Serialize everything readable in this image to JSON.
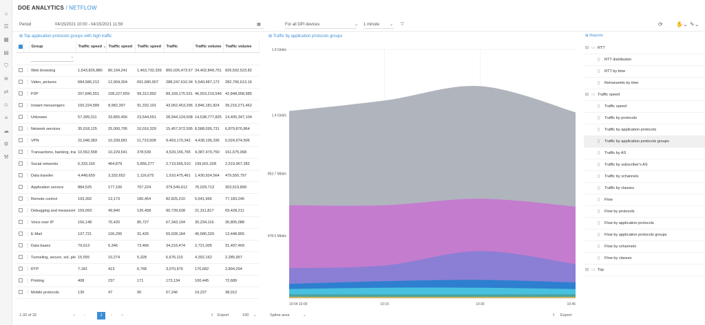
{
  "app": {
    "title": "DOE ANALYTICS",
    "separator": " / ",
    "section": "NETFLOW"
  },
  "filters": {
    "period_label": "Period",
    "period_value": "04/15/2021 10:00 - 04/15/2021 11:59",
    "device_value": "For all DPI devices",
    "interval_value": "1 minute"
  },
  "table": {
    "title": "Top application protocols groups with high traffic",
    "columns": [
      "Group",
      "Traffic speed",
      "Traffic speed",
      "Traffic speed",
      "Traffic",
      "Traffic volume",
      "Traffic volume"
    ],
    "rows": [
      [
        "Web browsing",
        "1,543,826,880",
        "80,194,241",
        "1,463,732,339",
        "850,026,473.57",
        "34,402,849,751",
        "826,592,523.82"
      ],
      [
        "Video, pictures",
        "684,586,212",
        "12,904,304",
        "691,680,907",
        "288,247,610.34",
        "5,540,487,172",
        "282,706,613.16"
      ],
      [
        "P2P",
        "207,840,551",
        "108,227,659",
        "99,312,892",
        "89,169,175.531",
        "46,503,219,546",
        "42,848,958,985"
      ],
      [
        "Instant messengers",
        "100,224,589",
        "8,982,397",
        "91,332,191",
        "43,062,453,296",
        "3,846,181,824",
        "39,216,271,462"
      ],
      [
        "Unknown",
        "57,399,311",
        "33,855,456",
        "23,544,551",
        "28,944,124,508",
        "14,538,777,825",
        "14,405,347,104"
      ],
      [
        "Network services",
        "35,018,125",
        "25,000,795",
        "10,016,329",
        "15,457,972,595",
        "8,588,095,731",
        "6,879,876,864"
      ],
      [
        "VPN",
        "22,048,383",
        "10,339,681",
        "11,723,508",
        "9,463,170,342",
        "4,438,195,336",
        "5,024,974,506"
      ],
      [
        "Transactions, banking, trac",
        "10,552,558",
        "10,229,541",
        "378,539",
        "4,529,156,765",
        "4,387,479,750",
        "161,675,068"
      ],
      [
        "Social networks",
        "6,333,160",
        "464,879",
        "5,856,277",
        "2,719,566,510",
        "199,601,028",
        "2,519,967,282"
      ],
      [
        "Data transfer",
        "4,448,659",
        "3,332,652",
        "1,116,675",
        "1,910,475,461",
        "1,430,924,564",
        "479,550,797"
      ],
      [
        "Application servers",
        "884,525",
        "177,106",
        "707,224",
        "379,549,612",
        "76,029,713",
        "303,519,899"
      ],
      [
        "Remote control",
        "193,392",
        "13,173",
        "180,454",
        "82,825,210",
        "5,641,965",
        "77,183,245"
      ],
      [
        "Debugging and measurem",
        "159,093",
        "49,840",
        "135,458",
        "90,739,628",
        "21,311,817",
        "69,428,211"
      ],
      [
        "Voice over IP",
        "166,148",
        "70,420",
        "85,727",
        "67,343,194",
        "30,234,116",
        "36,805,088"
      ],
      [
        "E-Mail",
        "137,721",
        "106,295",
        "31,426",
        "59,028,184",
        "45,580,329",
        "13,448,855"
      ],
      [
        "Data bases",
        "79,613",
        "6,346",
        "73,466",
        "34,216,474",
        "2,721,005",
        "31,497,469"
      ],
      [
        "Tunneling, secure, sol, pki",
        "15,555",
        "10,274",
        "5,328",
        "6,676,119",
        "4,392,162",
        "2,285,957"
      ],
      [
        "RTP",
        "7,181",
        "413",
        "6,768",
        "3,070,976",
        "176,682",
        "2,894,294"
      ],
      [
        "Printing",
        "408",
        "237",
        "171",
        "173,134",
        "100,445",
        "72,689"
      ],
      [
        "Mobile protocols",
        "135",
        "47",
        "90",
        "57,246",
        "19,237",
        "38,012"
      ]
    ]
  },
  "pager": {
    "range": "1-32 of 32",
    "page": "1",
    "export": "Export",
    "per_page": "100"
  },
  "chart_data": {
    "type": "area",
    "title": "Traffic by application protocols groups",
    "x": [
      "10:04 10:00",
      "10:15",
      "10:30",
      "10:45"
    ],
    "y_ticks": [
      "478.5 Mbit/s",
      "953.7 Mbit/s",
      "1.4 Gbit/s",
      "1.9 Gbit/s"
    ],
    "ylim": [
      0,
      1.9
    ],
    "yunit": "Gbit/s",
    "stacking": "stacked",
    "series": [
      {
        "color": "#e6b84a",
        "values": [
          0.01,
          0.01,
          0.01,
          0.01
        ]
      },
      {
        "color": "#4aa3a3",
        "values": [
          0.02,
          0.02,
          0.02,
          0.02
        ]
      },
      {
        "color": "#48c0e0",
        "values": [
          0.04,
          0.05,
          0.05,
          0.04
        ]
      },
      {
        "color": "#2e7fd0",
        "values": [
          0.04,
          0.05,
          0.06,
          0.05
        ]
      },
      {
        "color": "#8a7fd4",
        "values": [
          0.12,
          0.12,
          0.22,
          0.14
        ]
      },
      {
        "color": "#c47ccf",
        "values": [
          0.48,
          0.46,
          0.4,
          0.44
        ]
      },
      {
        "color": "#b0b4bd",
        "values": [
          0.72,
          0.8,
          0.86,
          0.72
        ]
      }
    ],
    "chart_type_label": "Spline area",
    "export_label": "Export"
  },
  "reports": {
    "title": "Reports",
    "groups": [
      {
        "label": "RTT",
        "items": [
          "RTT distribution",
          "RTT by time",
          "Retransmits by time"
        ]
      },
      {
        "label": "Traffic speed",
        "items": [
          "Traffic speed",
          "Traffic by protocols",
          "Traffic by application protocols",
          "Traffic by application protocols groups",
          "Traffic by AS",
          "Traffic by subscriber's AS",
          "Traffic by vchannels",
          "Traffic by classes",
          "Flow",
          "Flow by protocols",
          "Flow by application protocols",
          "Flow by application protocols groups",
          "Flow by vchannels",
          "Flow by classes"
        ]
      },
      {
        "label": "Top",
        "items": []
      }
    ],
    "selected": "Traffic by application protocols groups"
  }
}
